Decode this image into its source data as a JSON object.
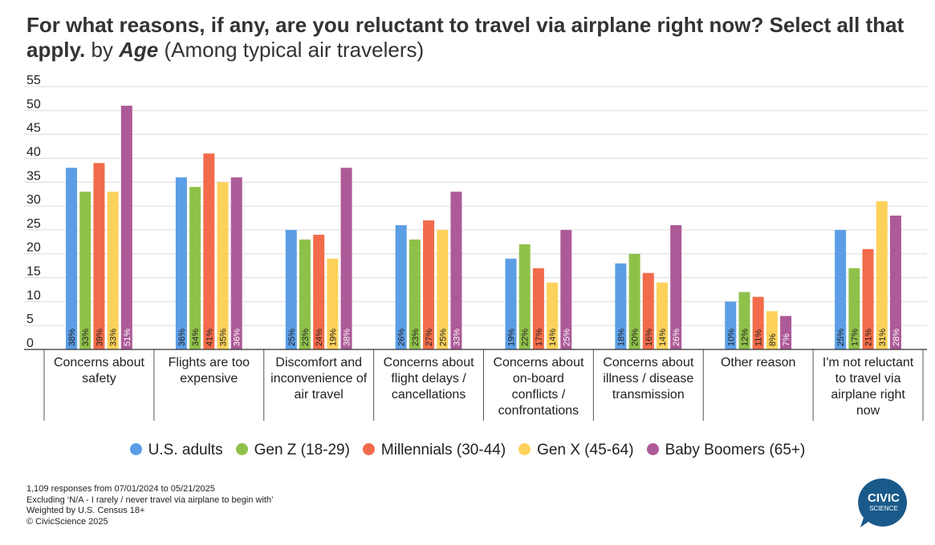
{
  "title": {
    "question": "For what reasons, if any, are you reluctant to travel via airplane right now? Select all that apply.",
    "by": "by",
    "dimension": "Age",
    "population": "(Among typical air travelers)"
  },
  "chart_data": {
    "type": "bar",
    "ylim": [
      0,
      55
    ],
    "yticks": [
      0,
      5,
      10,
      15,
      20,
      25,
      30,
      35,
      40,
      45,
      50,
      55
    ],
    "grid": true,
    "legend_position": "bottom",
    "categories": [
      [
        "Concerns about",
        "safety"
      ],
      [
        "Flights are too",
        "expensive"
      ],
      [
        "Discomfort and",
        "inconvenience of",
        "air travel"
      ],
      [
        "Concerns about",
        "flight delays /",
        "cancellations"
      ],
      [
        "Concerns about",
        "on-board",
        "conflicts /",
        "confrontations"
      ],
      [
        "Concerns about",
        "illness / disease",
        "transmission"
      ],
      [
        "Other reason"
      ],
      [
        "I'm not reluctant",
        "to travel via",
        "airplane right",
        "now"
      ]
    ],
    "series": [
      {
        "name": "U.S. adults",
        "color": "#5b9ee6",
        "values": [
          38,
          36,
          25,
          26,
          19,
          18,
          10,
          25
        ]
      },
      {
        "name": "Gen Z (18-29)",
        "color": "#8fc14a",
        "values": [
          33,
          34,
          23,
          23,
          22,
          20,
          12,
          17
        ]
      },
      {
        "name": "Millennials (30-44)",
        "color": "#f26b4a",
        "values": [
          39,
          41,
          24,
          27,
          17,
          16,
          11,
          21
        ]
      },
      {
        "name": "Gen X (45-64)",
        "color": "#fdd25a",
        "values": [
          33,
          35,
          19,
          25,
          14,
          14,
          8,
          31
        ]
      },
      {
        "name": "Baby Boomers (65+)",
        "color": "#ad5a98",
        "values": [
          51,
          36,
          38,
          33,
          25,
          26,
          7,
          28
        ]
      }
    ]
  },
  "footer": {
    "lines": [
      "1,109 responses from 07/01/2024 to 05/21/2025",
      "Excluding ‘N/A - I rarely / never travel via airplane to begin with’",
      "Weighted by U.S. Census 18+",
      "© CivicScience 2025"
    ]
  },
  "logo": {
    "line1": "CIVIC",
    "line2": "SCIENCE",
    "color": "#1a5a8a"
  }
}
